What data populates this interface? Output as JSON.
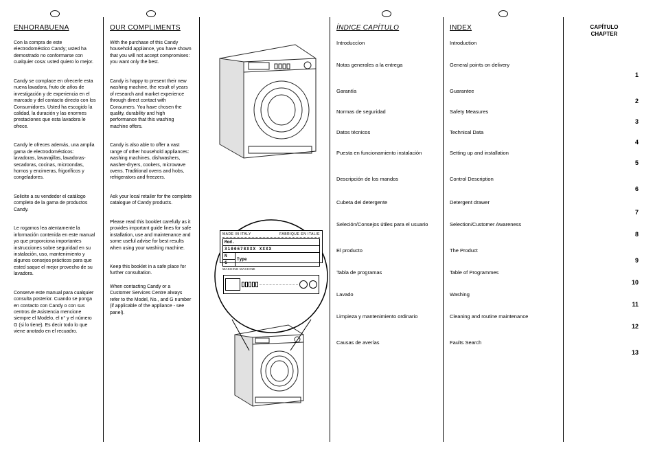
{
  "col1": {
    "heading": "ENHORABUENA",
    "p1": "Con la compra de este electrodoméstico Candy; usted ha demostrado no conformarse con cualquier cosa: usted quiero lo mejor.",
    "p2": "Candy se complace en ofrecerle esta nueva lavadora, fruto de años de investigación y de experiencia en el marcado y del contacto directo con los Consumidores. Usted ha escogido la calidad, la duración y las enormes prestaciones que esta lavadora le ofrece.",
    "p3": "Candy le ofreces además, una amplia gama de electrodomésticos: lavadoras, lavavajillas, lavadoras-secadoras, cocinas, microondas, hornos y encimeras, frigoríficos y congeladores.",
    "p4": "Solicite a su vendedor el catálogo completo de la gama de productos Candy.",
    "p5": "Le rogamos lea atentamente la información contenida en este manual ya que proporciona importantes instrucciones sobre seguridad en su instalación, uso, mantenimiento y algunos consejos prácticos para que ested saque el mejor provecho de su lavadora.",
    "p6": "Conserve este manual para cualquier consulta posterior. Cuando se ponga en contacto con Candy o con sus centros de Asistencia mencione siempre el Modelo, el n° y el número G (si lo tiene). Es decir todo lo que viene anotado en el recuadro."
  },
  "col2": {
    "heading": "OUR COMPLIMENTS",
    "p1": "With the purchase of this Candy household appliance, you have shown that you will not accept compromises: you want only the best.",
    "p2": "Candy is happy to present their new washing machine, the result of years of research and market experience through direct contact with Consumers. You have chosen the quality, durability and high performance that this washing machine offers.",
    "p3": "Candy is also able to offer a vast range of other household appliances: washing machines, dishwashers, washer-dryers, cookers, microwave ovens. Traditional ovens and hobs, refrigerators and freezers.",
    "p4": "Ask your local retailer for the complete catalogue of Candy products.",
    "p5": "Please read this booklet carefully as it provides important guide lines for safe installation, use and maintenance and some useful advise for best results when using your washing machine.",
    "p6": "Keep this booklet in a safe place for further consultation.",
    "p7": "When contacting Candy or a Customer Services Centre always refer to the Model, No., and G number (if applicable of the appliance - see panel)."
  },
  "col4": {
    "heading": "ÍNDICE CAPÍTULO",
    "items": [
      "Introduccíon",
      "Notas generales a la entrega",
      "Garantía",
      "Normas de seguridad",
      "Datos técnicos",
      "Puesta en funcionamiento instalación",
      "Descripción de los mandos",
      "Cubeta del detergente",
      "Seleción/Consejos útiles para el usuario",
      "El producto",
      "Tabla de programas",
      "Lavado",
      "Limpieza y mantenimiento ordinario",
      "Causas de averías"
    ]
  },
  "col5": {
    "heading": "INDEX",
    "items": [
      "Introduction",
      "General points on delivery",
      "Guarantee",
      "Safety Measures",
      "Technical Data",
      "Setting up and installation",
      "Control Description",
      "Detergent drawer",
      "Selection/Customer Awareness",
      "The Product",
      "Table of Programmes",
      "Washing",
      "Cleaning and routine maintenance",
      "Faults Search"
    ]
  },
  "col6": {
    "heading1": "CAPÍTULO",
    "heading2": "CHAPTER",
    "nums": [
      "",
      "1",
      "2",
      "3",
      "4",
      "5",
      "6",
      "7",
      "8",
      "9",
      "10",
      "11",
      "12",
      "13"
    ]
  },
  "plate": {
    "top1": "MADE IN ITALY",
    "top2": "FABRIQUE EN ITALIE",
    "mod_lbl": "Mod.",
    "mod_val": "3100678XXX  XXXX",
    "n_lbl": "N",
    "g_lbl": "G",
    "type_lbl": "Type",
    "bot": "WASHING MACHINE"
  }
}
